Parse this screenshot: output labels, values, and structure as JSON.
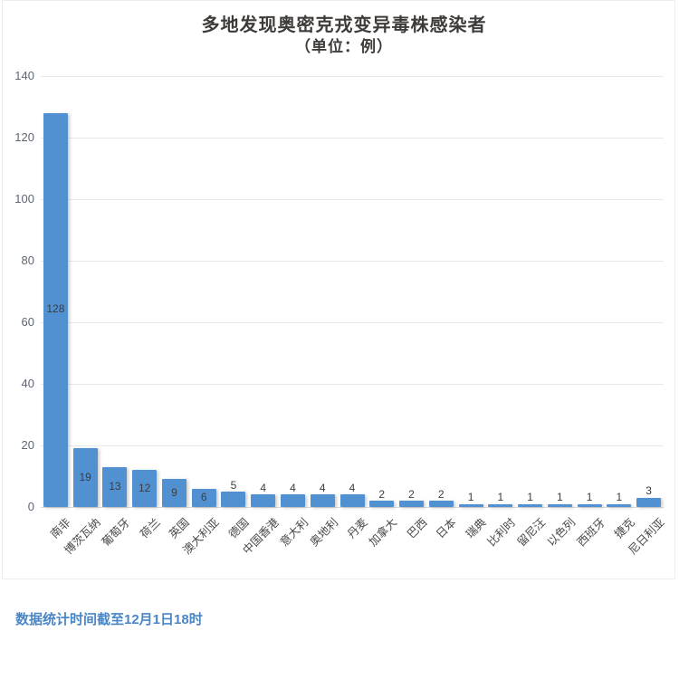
{
  "header": {
    "title": "多地发现奥密克戎变异毒株感染者",
    "subtitle": "（单位：例）"
  },
  "footer": {
    "note": "数据统计时间截至12月1日18时"
  },
  "chart_data": {
    "type": "bar",
    "title": "多地发现奥密克戎变异毒株感染者",
    "subtitle": "（单位：例）",
    "unit": "例",
    "categories": [
      "南非",
      "博茨瓦纳",
      "葡萄牙",
      "荷兰",
      "英国",
      "澳大利亚",
      "德国",
      "中国香港",
      "意大利",
      "奥地利",
      "丹麦",
      "加拿大",
      "巴西",
      "日本",
      "瑞典",
      "比利时",
      "留尼汪",
      "以色列",
      "西班牙",
      "捷克",
      "尼日利亚"
    ],
    "values": [
      128,
      19,
      13,
      12,
      9,
      6,
      5,
      4,
      4,
      4,
      4,
      2,
      2,
      2,
      1,
      1,
      1,
      1,
      1,
      1,
      3
    ],
    "ylim": [
      0,
      140
    ],
    "yticks": [
      0,
      20,
      40,
      60,
      80,
      100,
      120,
      140
    ],
    "grid": true,
    "legend": false,
    "data_labels": true,
    "annotation": "数据统计时间截至12月1日18时"
  },
  "colors": {
    "bar": "#5291d1",
    "title": "#3e3b39",
    "axis_tick_label": "#5c6672",
    "category_label": "#4a4a4a",
    "value_label": "#3a3d40",
    "gridline": "#e9e9e9",
    "baseline": "#dcdcdc",
    "footer": "#4a86c6"
  }
}
